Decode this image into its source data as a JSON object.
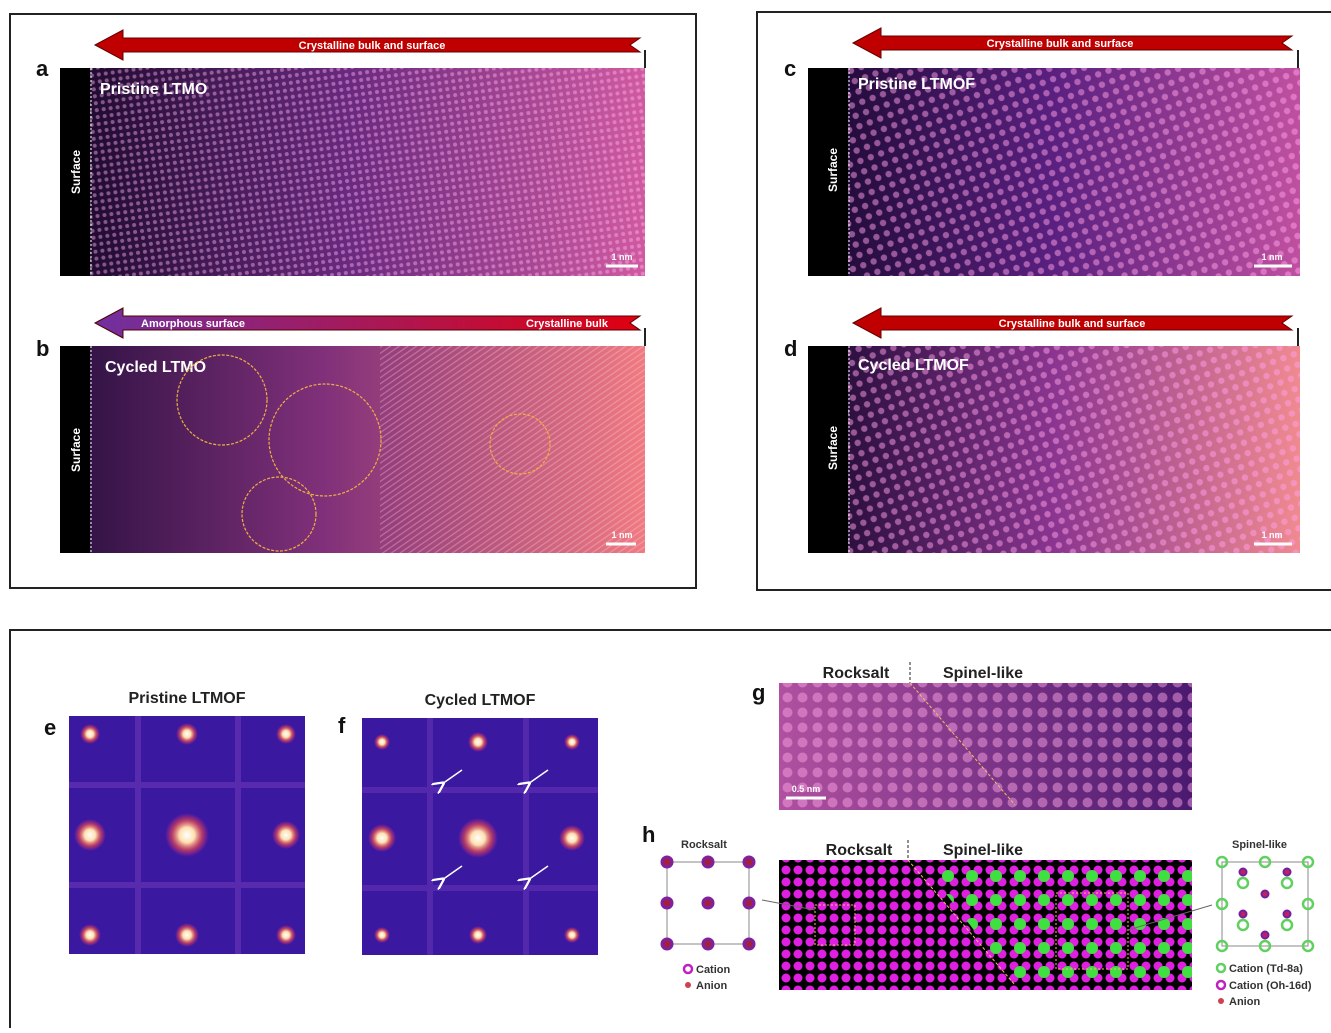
{
  "panels": {
    "a": {
      "label": "a",
      "arrow": "Crystalline bulk and surface",
      "title": "Pristine LTMO",
      "surface": "Surface",
      "scale": "1 nm"
    },
    "b": {
      "label": "b",
      "arrow_left": "Amorphous surface",
      "arrow_right": "Crystalline bulk",
      "title": "Cycled LTMO",
      "surface": "Surface",
      "scale": "1 nm"
    },
    "c": {
      "label": "c",
      "arrow": "Crystalline bulk and surface",
      "title": "Pristine LTMOF",
      "surface": "Surface",
      "scale": "1 nm"
    },
    "d": {
      "label": "d",
      "arrow": "Crystalline bulk and surface",
      "title": "Cycled LTMOF",
      "surface": "Surface",
      "scale": "1 nm"
    },
    "e": {
      "label": "e",
      "title": "Pristine LTMOF"
    },
    "f": {
      "label": "f",
      "title": "Cycled LTMOF"
    },
    "g": {
      "label": "g",
      "left": "Rocksalt",
      "right": "Spinel-like",
      "scale": "0.5 nm"
    },
    "h": {
      "label": "h",
      "left": "Rocksalt",
      "right": "Spinel-like",
      "rocksalt_title": "Rocksalt",
      "rocksalt_legend": [
        "Cation",
        "Anion"
      ],
      "spinel_title": "Spinel-like",
      "spinel_legend": [
        "Cation (Td-8a)",
        "Cation (Oh-16d)",
        "Anion"
      ]
    }
  }
}
